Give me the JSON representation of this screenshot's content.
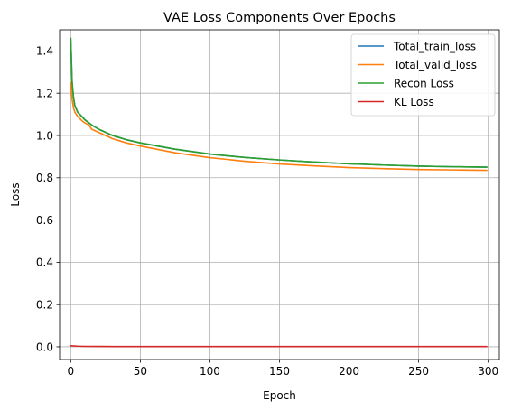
{
  "chart_data": {
    "type": "line",
    "title": "VAE Loss Components Over Epochs",
    "xlabel": "Epoch",
    "ylabel": "Loss",
    "xlim": [
      -8,
      308
    ],
    "ylim": [
      -0.06,
      1.5
    ],
    "x_ticks": [
      0,
      50,
      100,
      150,
      200,
      250,
      300
    ],
    "y_ticks": [
      0.0,
      0.2,
      0.4,
      0.6,
      0.8,
      1.0,
      1.2,
      1.4
    ],
    "x_tick_labels": [
      "0",
      "50",
      "100",
      "150",
      "200",
      "250",
      "300"
    ],
    "y_tick_labels": [
      "0.0",
      "0.2",
      "0.4",
      "0.6",
      "0.8",
      "1.0",
      "1.2",
      "1.4"
    ],
    "grid": true,
    "legend_position": "top-right",
    "series": [
      {
        "name": "Total_train_loss",
        "color": "#1f77b4",
        "x": [
          0,
          1,
          2,
          3,
          5,
          8,
          10,
          15,
          20,
          30,
          40,
          50,
          75,
          100,
          125,
          150,
          175,
          200,
          225,
          250,
          275,
          299
        ],
        "y": [
          1.46,
          1.25,
          1.18,
          1.14,
          1.11,
          1.09,
          1.075,
          1.05,
          1.03,
          1.0,
          0.98,
          0.965,
          0.935,
          0.912,
          0.896,
          0.884,
          0.874,
          0.866,
          0.86,
          0.855,
          0.852,
          0.85
        ]
      },
      {
        "name": "Total_valid_loss",
        "color": "#ff7f0e",
        "x": [
          0,
          1,
          2,
          3,
          5,
          8,
          10,
          13,
          15,
          20,
          25,
          30,
          40,
          50,
          75,
          100,
          125,
          150,
          175,
          200,
          225,
          250,
          275,
          299
        ],
        "y": [
          1.25,
          1.17,
          1.13,
          1.11,
          1.09,
          1.07,
          1.06,
          1.05,
          1.03,
          1.015,
          1.0,
          0.985,
          0.965,
          0.95,
          0.918,
          0.895,
          0.878,
          0.865,
          0.856,
          0.848,
          0.843,
          0.839,
          0.837,
          0.835
        ]
      },
      {
        "name": "Recon Loss",
        "color": "#2ca02c",
        "x": [
          0,
          1,
          2,
          3,
          5,
          8,
          10,
          15,
          20,
          30,
          40,
          50,
          75,
          100,
          125,
          150,
          175,
          200,
          225,
          250,
          275,
          299
        ],
        "y": [
          1.46,
          1.25,
          1.18,
          1.14,
          1.11,
          1.09,
          1.075,
          1.05,
          1.03,
          1.0,
          0.98,
          0.965,
          0.935,
          0.912,
          0.896,
          0.884,
          0.874,
          0.866,
          0.86,
          0.855,
          0.852,
          0.85
        ]
      },
      {
        "name": "KL Loss",
        "color": "#d62728",
        "x": [
          0,
          5,
          10,
          20,
          50,
          100,
          150,
          200,
          250,
          299
        ],
        "y": [
          0.005,
          0.003,
          0.002,
          0.0015,
          0.001,
          0.001,
          0.001,
          0.001,
          0.001,
          0.001
        ]
      }
    ]
  }
}
